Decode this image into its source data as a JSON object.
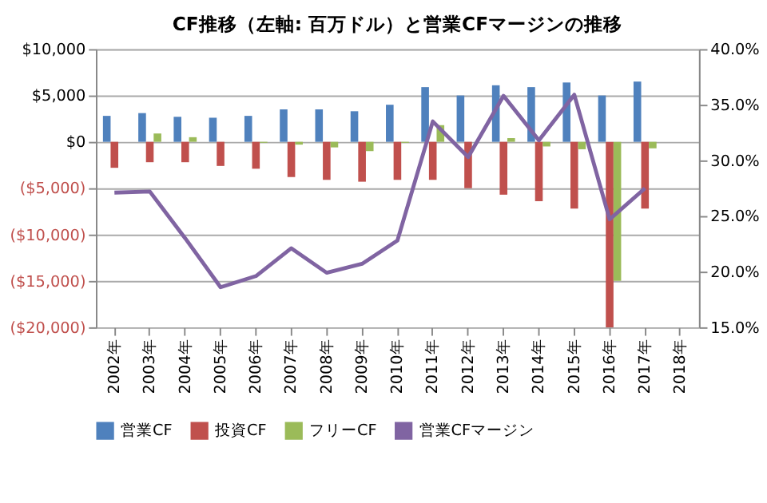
{
  "chart_data": {
    "type": "bar",
    "title": "CF推移（左軸: 百万ドル）と営業CFマージンの推移",
    "categories": [
      "2002年",
      "2003年",
      "2004年",
      "2005年",
      "2006年",
      "2007年",
      "2008年",
      "2009年",
      "2010年",
      "2011年",
      "2012年",
      "2013年",
      "2014年",
      "2015年",
      "2016年",
      "2017年",
      "2018年"
    ],
    "series": [
      {
        "name": "営業CF",
        "color": "#4f81bd",
        "values": [
          2800,
          3100,
          2700,
          2600,
          2800,
          3500,
          3500,
          3300,
          4000,
          5900,
          5000,
          6100,
          5900,
          6400,
          5000,
          6500,
          null
        ]
      },
      {
        "name": "投資CF",
        "color": "#c0504d",
        "values": [
          -2800,
          -2200,
          -2200,
          -2600,
          -2900,
          -3800,
          -4100,
          -4300,
          -4100,
          -4100,
          -5000,
          -5700,
          -6400,
          -7200,
          -20000,
          -7200,
          null
        ]
      },
      {
        "name": "フリーCF",
        "color": "#9bbb59",
        "values": [
          0,
          900,
          500,
          0,
          -100,
          -300,
          -600,
          -1000,
          -100,
          1800,
          0,
          400,
          -500,
          -800,
          -15000,
          -700,
          null
        ]
      },
      {
        "name": "営業CFマージン",
        "color": "#8064a2",
        "type": "line",
        "axis": "y2",
        "values": [
          27.1,
          27.2,
          23.0,
          18.6,
          19.6,
          22.1,
          19.9,
          20.7,
          22.8,
          33.5,
          30.3,
          35.8,
          31.8,
          35.9,
          24.7,
          27.5,
          null
        ]
      }
    ],
    "ylim": [
      -20000,
      10000
    ],
    "yticks": [
      {
        "value": -20000,
        "label": "($20,000)"
      },
      {
        "value": -15000,
        "label": "($15,000)"
      },
      {
        "value": -10000,
        "label": "($10,000)"
      },
      {
        "value": -5000,
        "label": "($5,000)"
      },
      {
        "value": 0,
        "label": "$0"
      },
      {
        "value": 5000,
        "label": "$5,000"
      },
      {
        "value": 10000,
        "label": "$10,000"
      }
    ],
    "y2lim": [
      15,
      40
    ],
    "y2ticks": [
      {
        "value": 15,
        "label": "15.0%"
      },
      {
        "value": 20,
        "label": "20.0%"
      },
      {
        "value": 25,
        "label": "25.0%"
      },
      {
        "value": 30,
        "label": "30.0%"
      },
      {
        "value": 35,
        "label": "35.0%"
      },
      {
        "value": 40,
        "label": "40.0%"
      }
    ],
    "grid": "y",
    "legend": "bottom"
  }
}
